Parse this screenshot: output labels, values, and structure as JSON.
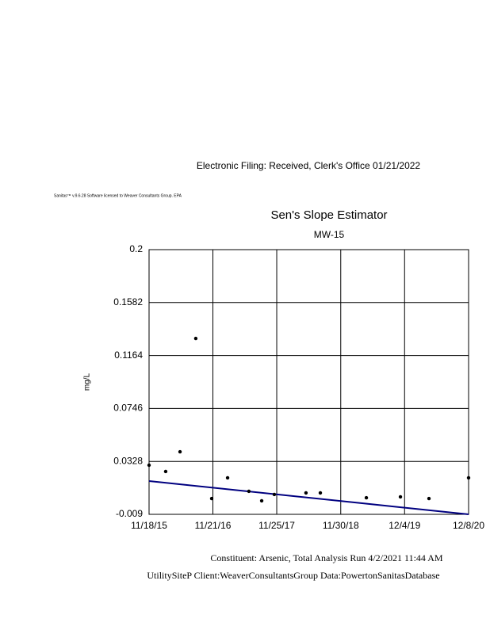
{
  "header": "Electronic Filing: Received, Clerk's Office 01/21/2022",
  "license": "Sanitas™ v.9.6.28 Software licensed to Weaver Consultants Group. EPA",
  "footer": [
    "Constituent: Arsenic, Total Analysis Run 4/2/2021 11:44 AM",
    "UtilitySiteP Client:WeaverConsultantsGroup Data:PowertonSanitasDatabase"
  ],
  "chart_data": {
    "type": "scatter",
    "title": "Sen's Slope Estimator",
    "subtitle": "MW-15",
    "y_label": "mg/L",
    "x": [
      "2015-11-18",
      "2016-02-22",
      "2016-05-15",
      "2016-08-14",
      "2016-11-14",
      "2017-02-14",
      "2017-06-17",
      "2017-08-30",
      "2017-11-11",
      "2018-05-13",
      "2018-08-04",
      "2019-04-27",
      "2019-11-10",
      "2020-04-23",
      "2020-12-08"
    ],
    "values": [
      0.0298,
      0.0248,
      0.0404,
      0.1299,
      0.0035,
      0.0198,
      0.0092,
      0.0017,
      0.0067,
      0.0079,
      0.0079,
      0.0041,
      0.0048,
      0.0035,
      0.0198
    ],
    "color": "#000000",
    "trend": {
      "x": [
        "2015-11-18",
        "2020-12-08"
      ],
      "values": [
        0.0173,
        -0.009
      ],
      "color": "#000080"
    },
    "xlim": [
      "2015-11-18",
      "2020-12-08"
    ],
    "xticks": [
      {
        "value": "2015-11-18",
        "label": "11/18/15"
      },
      {
        "value": "2016-11-21",
        "label": "11/21/16"
      },
      {
        "value": "2017-11-25",
        "label": "11/25/17"
      },
      {
        "value": "2018-11-30",
        "label": "11/30/18"
      },
      {
        "value": "2019-12-04",
        "label": "12/4/19"
      },
      {
        "value": "2020-12-08",
        "label": "12/8/20"
      }
    ],
    "ylim": [
      -0.009,
      0.2
    ],
    "yticks": [
      0.2,
      0.1582,
      0.1164,
      0.0746,
      0.0328,
      -0.009
    ],
    "grid": true
  }
}
